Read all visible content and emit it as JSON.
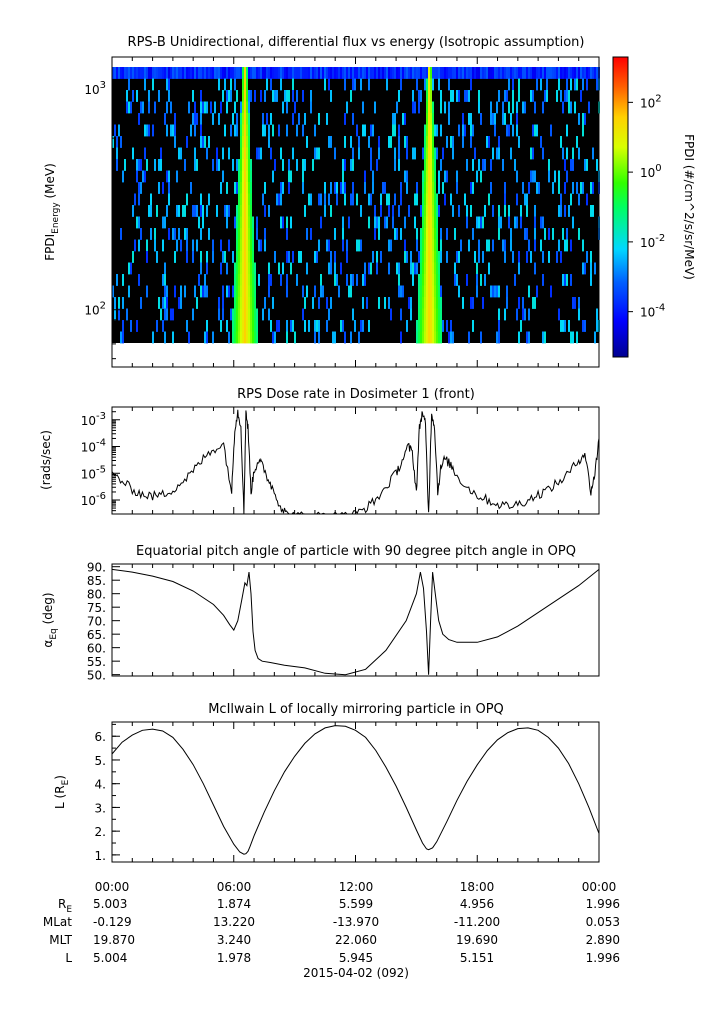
{
  "chart_data": [
    {
      "type": "heatmap",
      "title": "RPS-B  Unidirectional, differential flux vs energy (Isotropic assumption)",
      "ylabel_main": "FPDI",
      "ylabel_sub": "Energy",
      "ylabel_unit": "(MeV)",
      "y_scale": "log",
      "ylim": [
        55,
        1400
      ],
      "yticks": [
        {
          "v": 100,
          "label": "10",
          "exp": "2"
        },
        {
          "v": 1000,
          "label": "10",
          "exp": "3"
        }
      ],
      "colorbar": {
        "label": "FPDI (#/cm^2/s/sr/MeV)",
        "scale": "log",
        "range": [
          -5.3,
          3.3
        ],
        "ticks": [
          {
            "v": 2,
            "label": "10",
            "exp": "2"
          },
          {
            "v": 0,
            "label": "10",
            "exp": "0"
          },
          {
            "v": -2,
            "label": "10",
            "exp": "-2"
          },
          {
            "v": -4,
            "label": "10",
            "exp": "-4"
          }
        ]
      },
      "bright_bands_hours": [
        6.5,
        15.6
      ]
    },
    {
      "type": "line",
      "title": "RPS  Dose rate in Dosimeter 1 (front)",
      "ylabel": "(rads/sec)",
      "y_scale": "log",
      "ylim": [
        3e-07,
        0.003
      ],
      "yticks": [
        {
          "v": 0.001,
          "label": "10",
          "exp": "-3"
        },
        {
          "v": 0.0001,
          "label": "10",
          "exp": "-4"
        },
        {
          "v": 1e-05,
          "label": "10",
          "exp": "-5"
        },
        {
          "v": 1e-06,
          "label": "10",
          "exp": "-6"
        }
      ],
      "x_hours": [
        0,
        0.5,
        1,
        1.5,
        2,
        2.5,
        3,
        3.5,
        4,
        4.5,
        5,
        5.5,
        5.9,
        6.05,
        6.2,
        6.35,
        6.5,
        6.6,
        6.7,
        6.85,
        7.0,
        7.2,
        7.4,
        7.7,
        8.0,
        8.3,
        8.6,
        9.0,
        9.5,
        10,
        10.5,
        11,
        11.5,
        12,
        12.5,
        13,
        13.5,
        14,
        14.3,
        14.6,
        14.8,
        15.0,
        15.15,
        15.3,
        15.45,
        15.6,
        15.75,
        15.9,
        16.05,
        16.2,
        16.4,
        16.7,
        17,
        17.5,
        18,
        18.5,
        19,
        19.5,
        20,
        20.5,
        21,
        21.5,
        22,
        22.5,
        23,
        23.3,
        23.6,
        23.8,
        24
      ],
      "values": [
        1e-05,
        5e-06,
        2.5e-06,
        1.6e-06,
        1.4e-06,
        1.6e-06,
        2.5e-06,
        5e-06,
        1.2e-05,
        3.5e-05,
        8e-05,
        0.00012,
        2e-06,
        0.0005,
        0.002,
        0.0006,
        3e-07,
        0.002,
        0.0005,
        2e-06,
        1.2e-05,
        3e-05,
        2e-05,
        6e-06,
        2e-06,
        6e-07,
        3e-07,
        2.5e-07,
        2.5e-07,
        2.5e-07,
        2.5e-07,
        2.5e-07,
        2.5e-07,
        3e-07,
        5e-07,
        1e-06,
        3e-06,
        1e-05,
        3e-05,
        0.0001,
        6e-05,
        2e-06,
        0.0005,
        0.002,
        0.0006,
        3e-07,
        0.002,
        0.0005,
        2e-06,
        1.5e-05,
        3.5e-05,
        2e-05,
        8e-06,
        3e-06,
        1.5e-06,
        1e-06,
        7e-07,
        6e-07,
        7e-07,
        1e-06,
        1.6e-06,
        2.5e-06,
        4.5e-06,
        1e-05,
        3e-05,
        6e-05,
        2e-06,
        1e-05,
        0.0002
      ]
    },
    {
      "type": "line",
      "title": "Equatorial pitch angle of particle with 90 degree pitch angle in OPQ",
      "ylabel_main": "α",
      "ylabel_sub": "Eq",
      "ylabel_unit": "(deg)",
      "ylim": [
        49.5,
        91
      ],
      "yticks": [
        90,
        85,
        80,
        75,
        70,
        65,
        60,
        55,
        50
      ],
      "ytick_labels": [
        "90.",
        "85.",
        "80.",
        "75.",
        "70.",
        "65.",
        "60.",
        "55.",
        "50."
      ],
      "x_hours": [
        0,
        1,
        2,
        3,
        4,
        5,
        5.5,
        5.8,
        6.0,
        6.2,
        6.4,
        6.55,
        6.65,
        6.75,
        6.85,
        6.95,
        7.05,
        7.2,
        7.4,
        7.8,
        8.5,
        9.5,
        10.5,
        11.5,
        12.5,
        13.5,
        14.5,
        15.0,
        15.2,
        15.35,
        15.5,
        15.6,
        15.7,
        15.8,
        15.9,
        16.1,
        16.3,
        16.6,
        17,
        18,
        19,
        20,
        21,
        22,
        23,
        24
      ],
      "values": [
        89,
        88,
        86.5,
        84.5,
        81,
        76,
        72,
        68.5,
        66.5,
        70,
        78,
        84,
        83,
        88,
        80,
        66,
        59,
        56,
        55,
        54.5,
        53.5,
        52.5,
        50.5,
        50,
        52,
        59,
        70,
        80,
        88,
        82,
        66,
        50,
        70,
        88,
        82,
        70,
        65,
        63,
        62,
        62,
        64,
        68,
        73,
        78,
        83,
        89
      ]
    },
    {
      "type": "line",
      "title": "McIlwain L of locally mirroring particle in OPQ",
      "ylabel_main": "L (R",
      "ylabel_sub": "E",
      "ylabel_unit": ")",
      "ylim": [
        0.7,
        6.6
      ],
      "yticks": [
        6,
        5,
        4,
        3,
        2,
        1
      ],
      "ytick_labels": [
        "6.",
        "5.",
        "4.",
        "3.",
        "2.",
        "1."
      ],
      "x_hours": [
        0,
        0.5,
        1,
        1.5,
        2,
        2.5,
        3,
        3.5,
        4,
        4.5,
        5,
        5.5,
        6,
        6.3,
        6.5,
        6.6,
        6.7,
        6.8,
        7,
        7.5,
        8,
        8.5,
        9,
        9.5,
        10,
        10.5,
        11,
        11.5,
        12,
        12.5,
        13,
        13.5,
        14,
        14.5,
        15,
        15.3,
        15.5,
        15.6,
        15.8,
        16,
        16.5,
        17,
        17.5,
        18,
        18.5,
        19,
        19.5,
        20,
        20.5,
        21,
        21.5,
        22,
        22.5,
        23,
        23.5,
        24
      ],
      "values": [
        5.25,
        5.75,
        6.05,
        6.25,
        6.3,
        6.22,
        5.95,
        5.45,
        4.8,
        4.0,
        3.1,
        2.2,
        1.45,
        1.12,
        1.03,
        1.05,
        1.15,
        1.35,
        1.8,
        2.8,
        3.7,
        4.5,
        5.15,
        5.7,
        6.1,
        6.35,
        6.45,
        6.42,
        6.25,
        5.95,
        5.4,
        4.7,
        3.9,
        3.0,
        2.05,
        1.5,
        1.25,
        1.22,
        1.3,
        1.55,
        2.4,
        3.3,
        4.1,
        4.8,
        5.4,
        5.85,
        6.15,
        6.32,
        6.35,
        6.25,
        5.95,
        5.5,
        4.85,
        4.0,
        3.0,
        1.9
      ]
    }
  ],
  "time_axis": {
    "tick_labels": [
      "00:00",
      "06:00",
      "12:00",
      "18:00",
      "00:00"
    ],
    "date_label": "2015-04-02 (092)"
  },
  "ephemeris": [
    {
      "label": "R",
      "sub": "E",
      "values": [
        "5.003",
        "1.874",
        "5.599",
        "4.956",
        "1.996"
      ]
    },
    {
      "label": "MLat",
      "sub": "",
      "values": [
        "-0.129",
        "13.220",
        "-13.970",
        "-11.200",
        "0.053"
      ]
    },
    {
      "label": "MLT",
      "sub": "",
      "values": [
        "19.870",
        "3.240",
        "22.060",
        "19.690",
        "2.890"
      ]
    },
    {
      "label": "L",
      "sub": "",
      "values": [
        "5.004",
        "1.978",
        "5.945",
        "5.151",
        "1.996"
      ]
    }
  ]
}
